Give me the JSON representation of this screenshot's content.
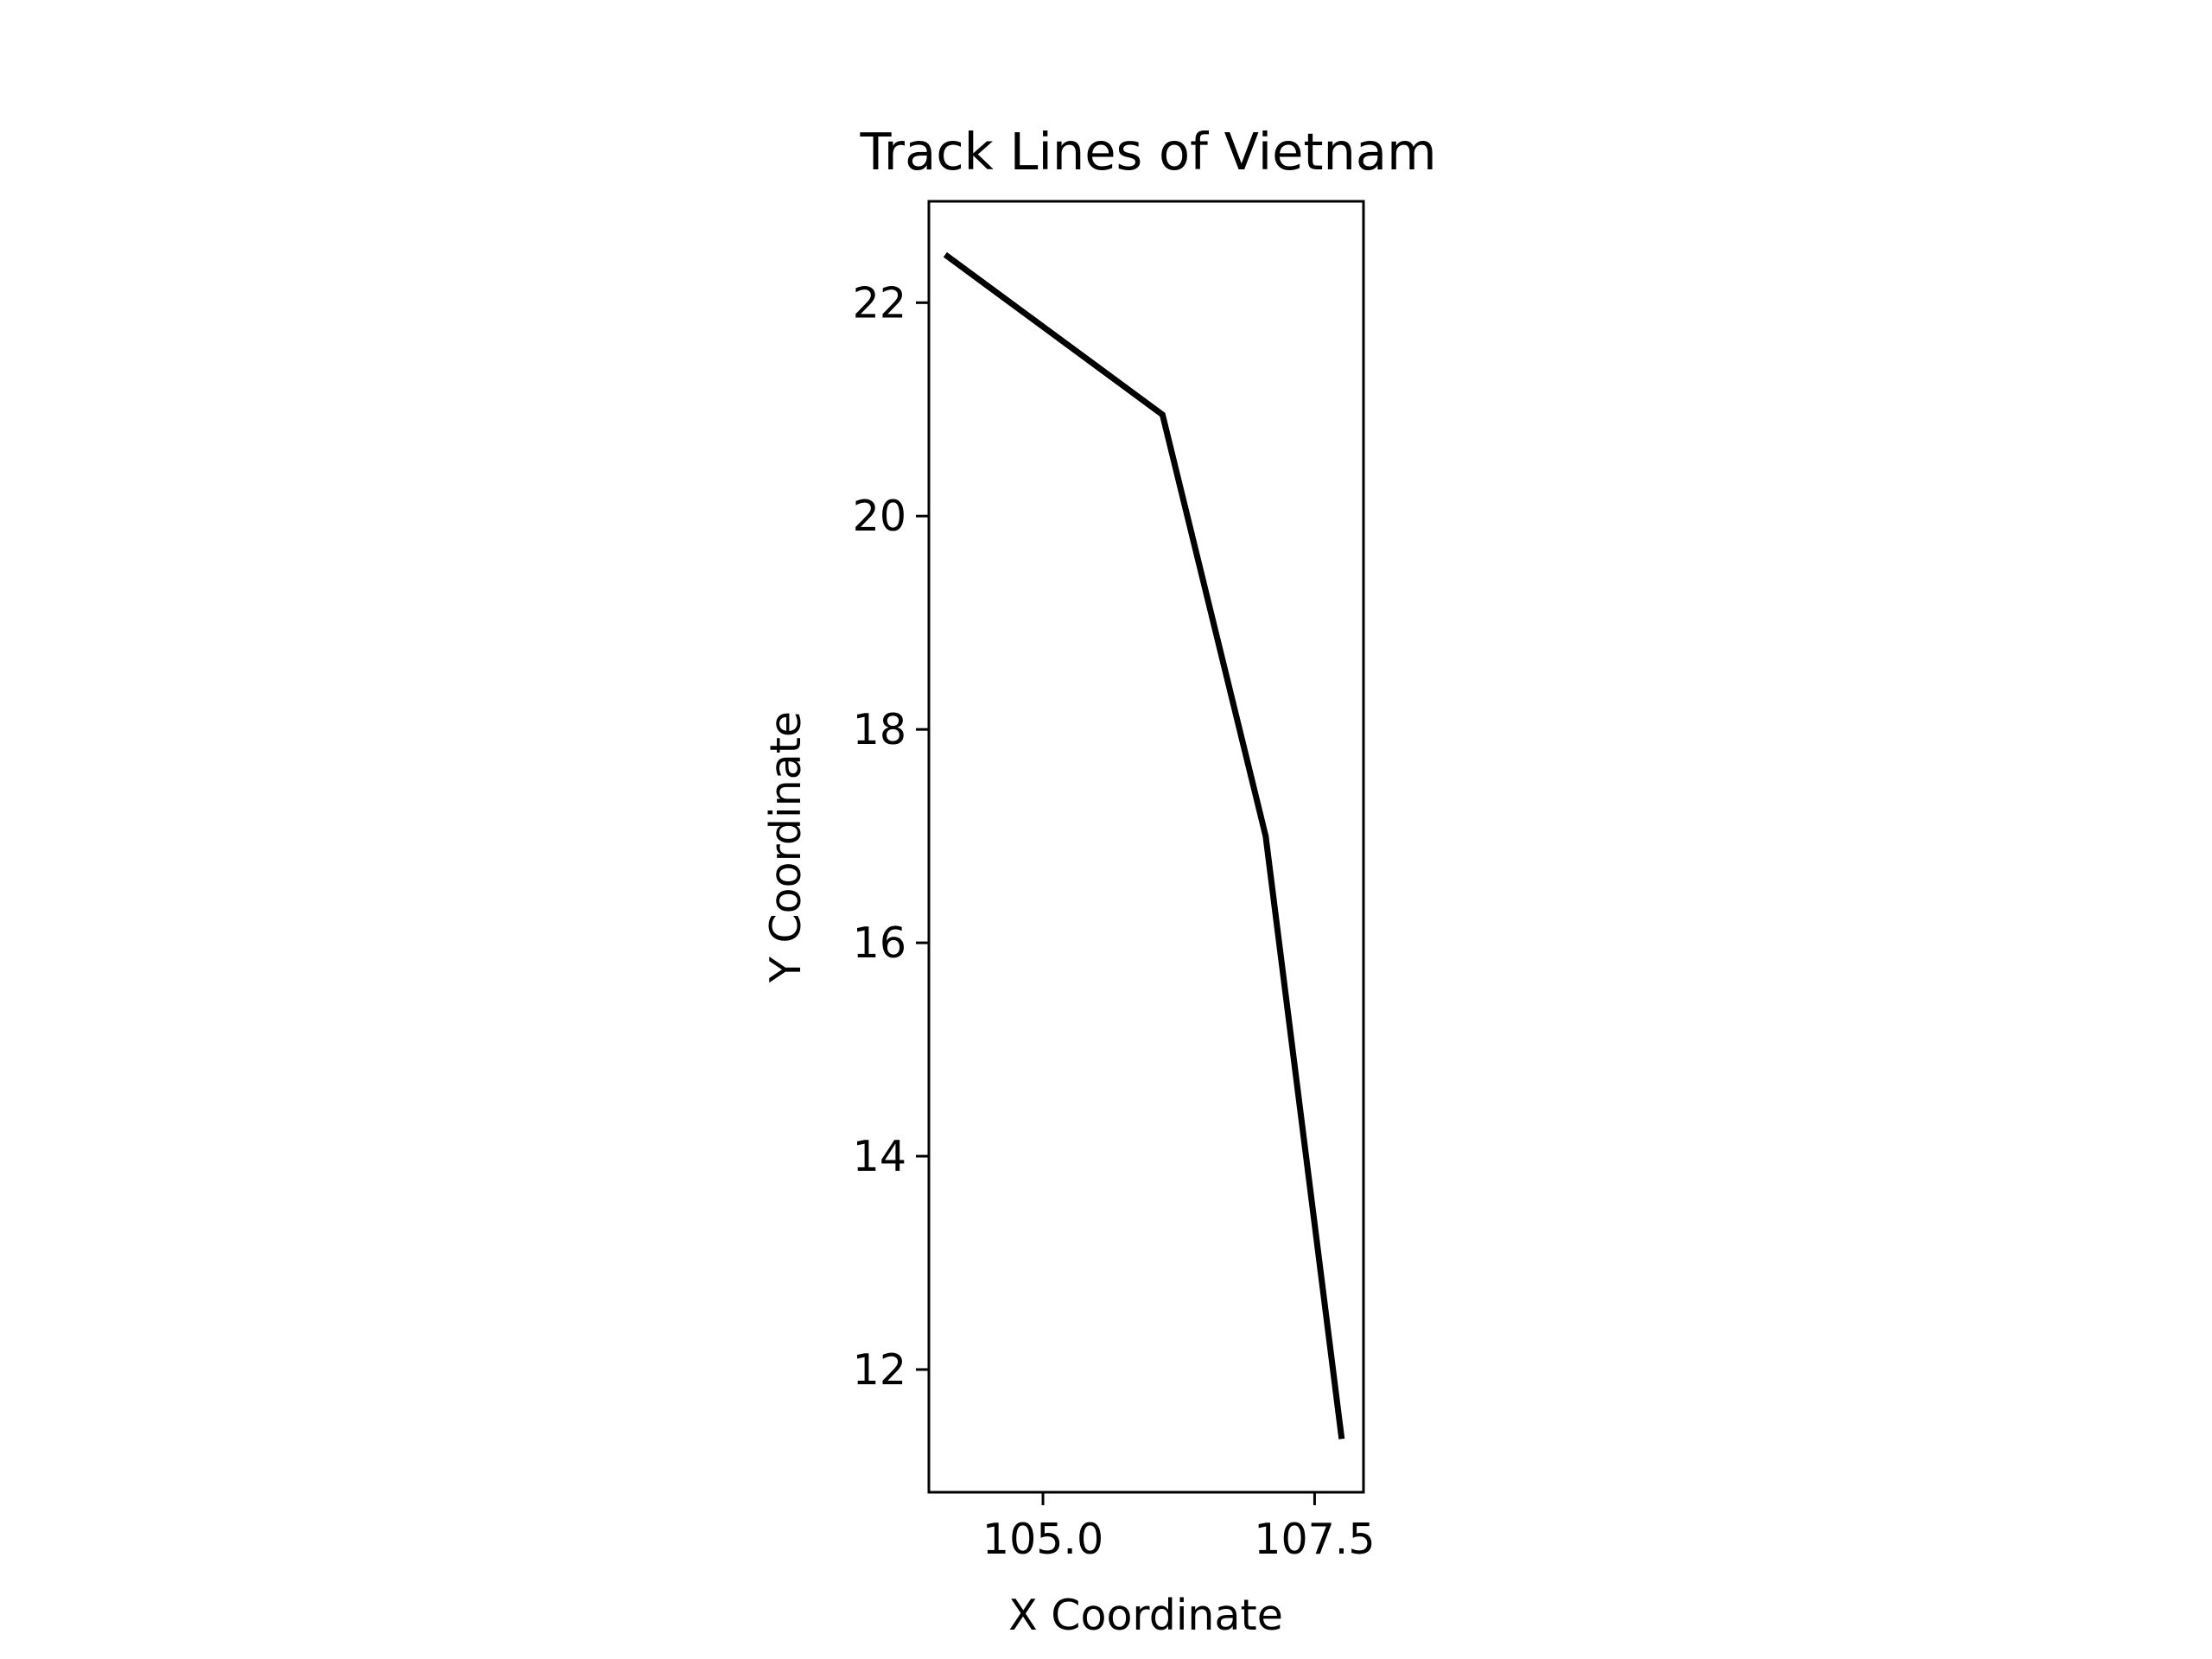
{
  "chart_data": {
    "type": "line",
    "title": "Track Lines of Vietnam",
    "xlabel": "X Coordinate",
    "ylabel": "Y Coordinate",
    "xlim": [
      103.95,
      107.95
    ],
    "ylim": [
      10.85,
      22.95
    ],
    "xticks": [
      105.0,
      107.5
    ],
    "xtick_labels": [
      "105.0",
      "107.5"
    ],
    "yticks": [
      12,
      14,
      16,
      18,
      20,
      22
    ],
    "ytick_labels": [
      "12",
      "14",
      "16",
      "18",
      "20",
      "22"
    ],
    "grid": false,
    "series": [
      {
        "color": "#000000",
        "x": [
          104.1,
          106.1,
          107.05,
          107.75
        ],
        "y": [
          22.45,
          20.95,
          17.0,
          11.35
        ]
      }
    ]
  }
}
